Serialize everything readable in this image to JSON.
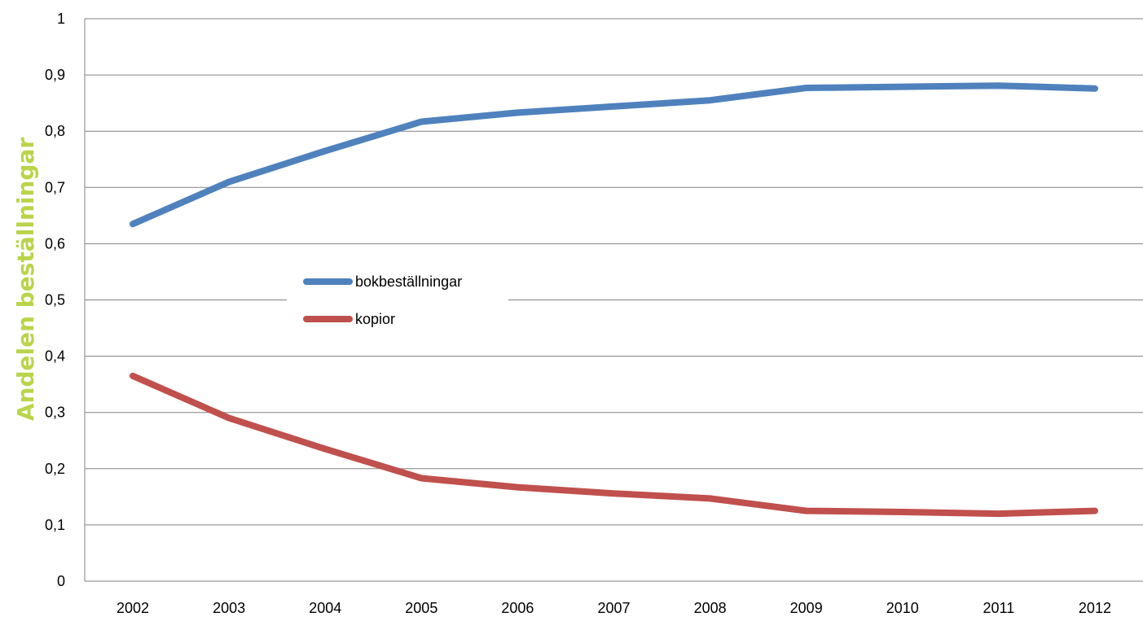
{
  "chart_data": {
    "type": "line",
    "ylabel": "Andelen beställningar",
    "xlabel": "",
    "x": [
      "2002",
      "2003",
      "2004",
      "2005",
      "2006",
      "2007",
      "2008",
      "2009",
      "2010",
      "2011",
      "2012"
    ],
    "y_ticks": [
      "0",
      "0,1",
      "0,2",
      "0,3",
      "0,4",
      "0,5",
      "0,6",
      "0,7",
      "0,8",
      "0,9",
      "1"
    ],
    "ylim": [
      0,
      1
    ],
    "grid": true,
    "legend_position": "center-left",
    "series": [
      {
        "name": "bokbeställningar",
        "color": "#4F81BD",
        "values": [
          0.635,
          0.71,
          0.765,
          0.817,
          0.833,
          0.844,
          0.855,
          0.877,
          0.879,
          0.881,
          0.876
        ]
      },
      {
        "name": "kopior",
        "color": "#C0504D",
        "values": [
          0.365,
          0.29,
          0.235,
          0.183,
          0.167,
          0.156,
          0.147,
          0.125,
          0.123,
          0.12,
          0.125
        ]
      }
    ],
    "colors": {
      "ylabel": "#B9D44A",
      "grid": "#808080",
      "axis": "#808080"
    }
  }
}
